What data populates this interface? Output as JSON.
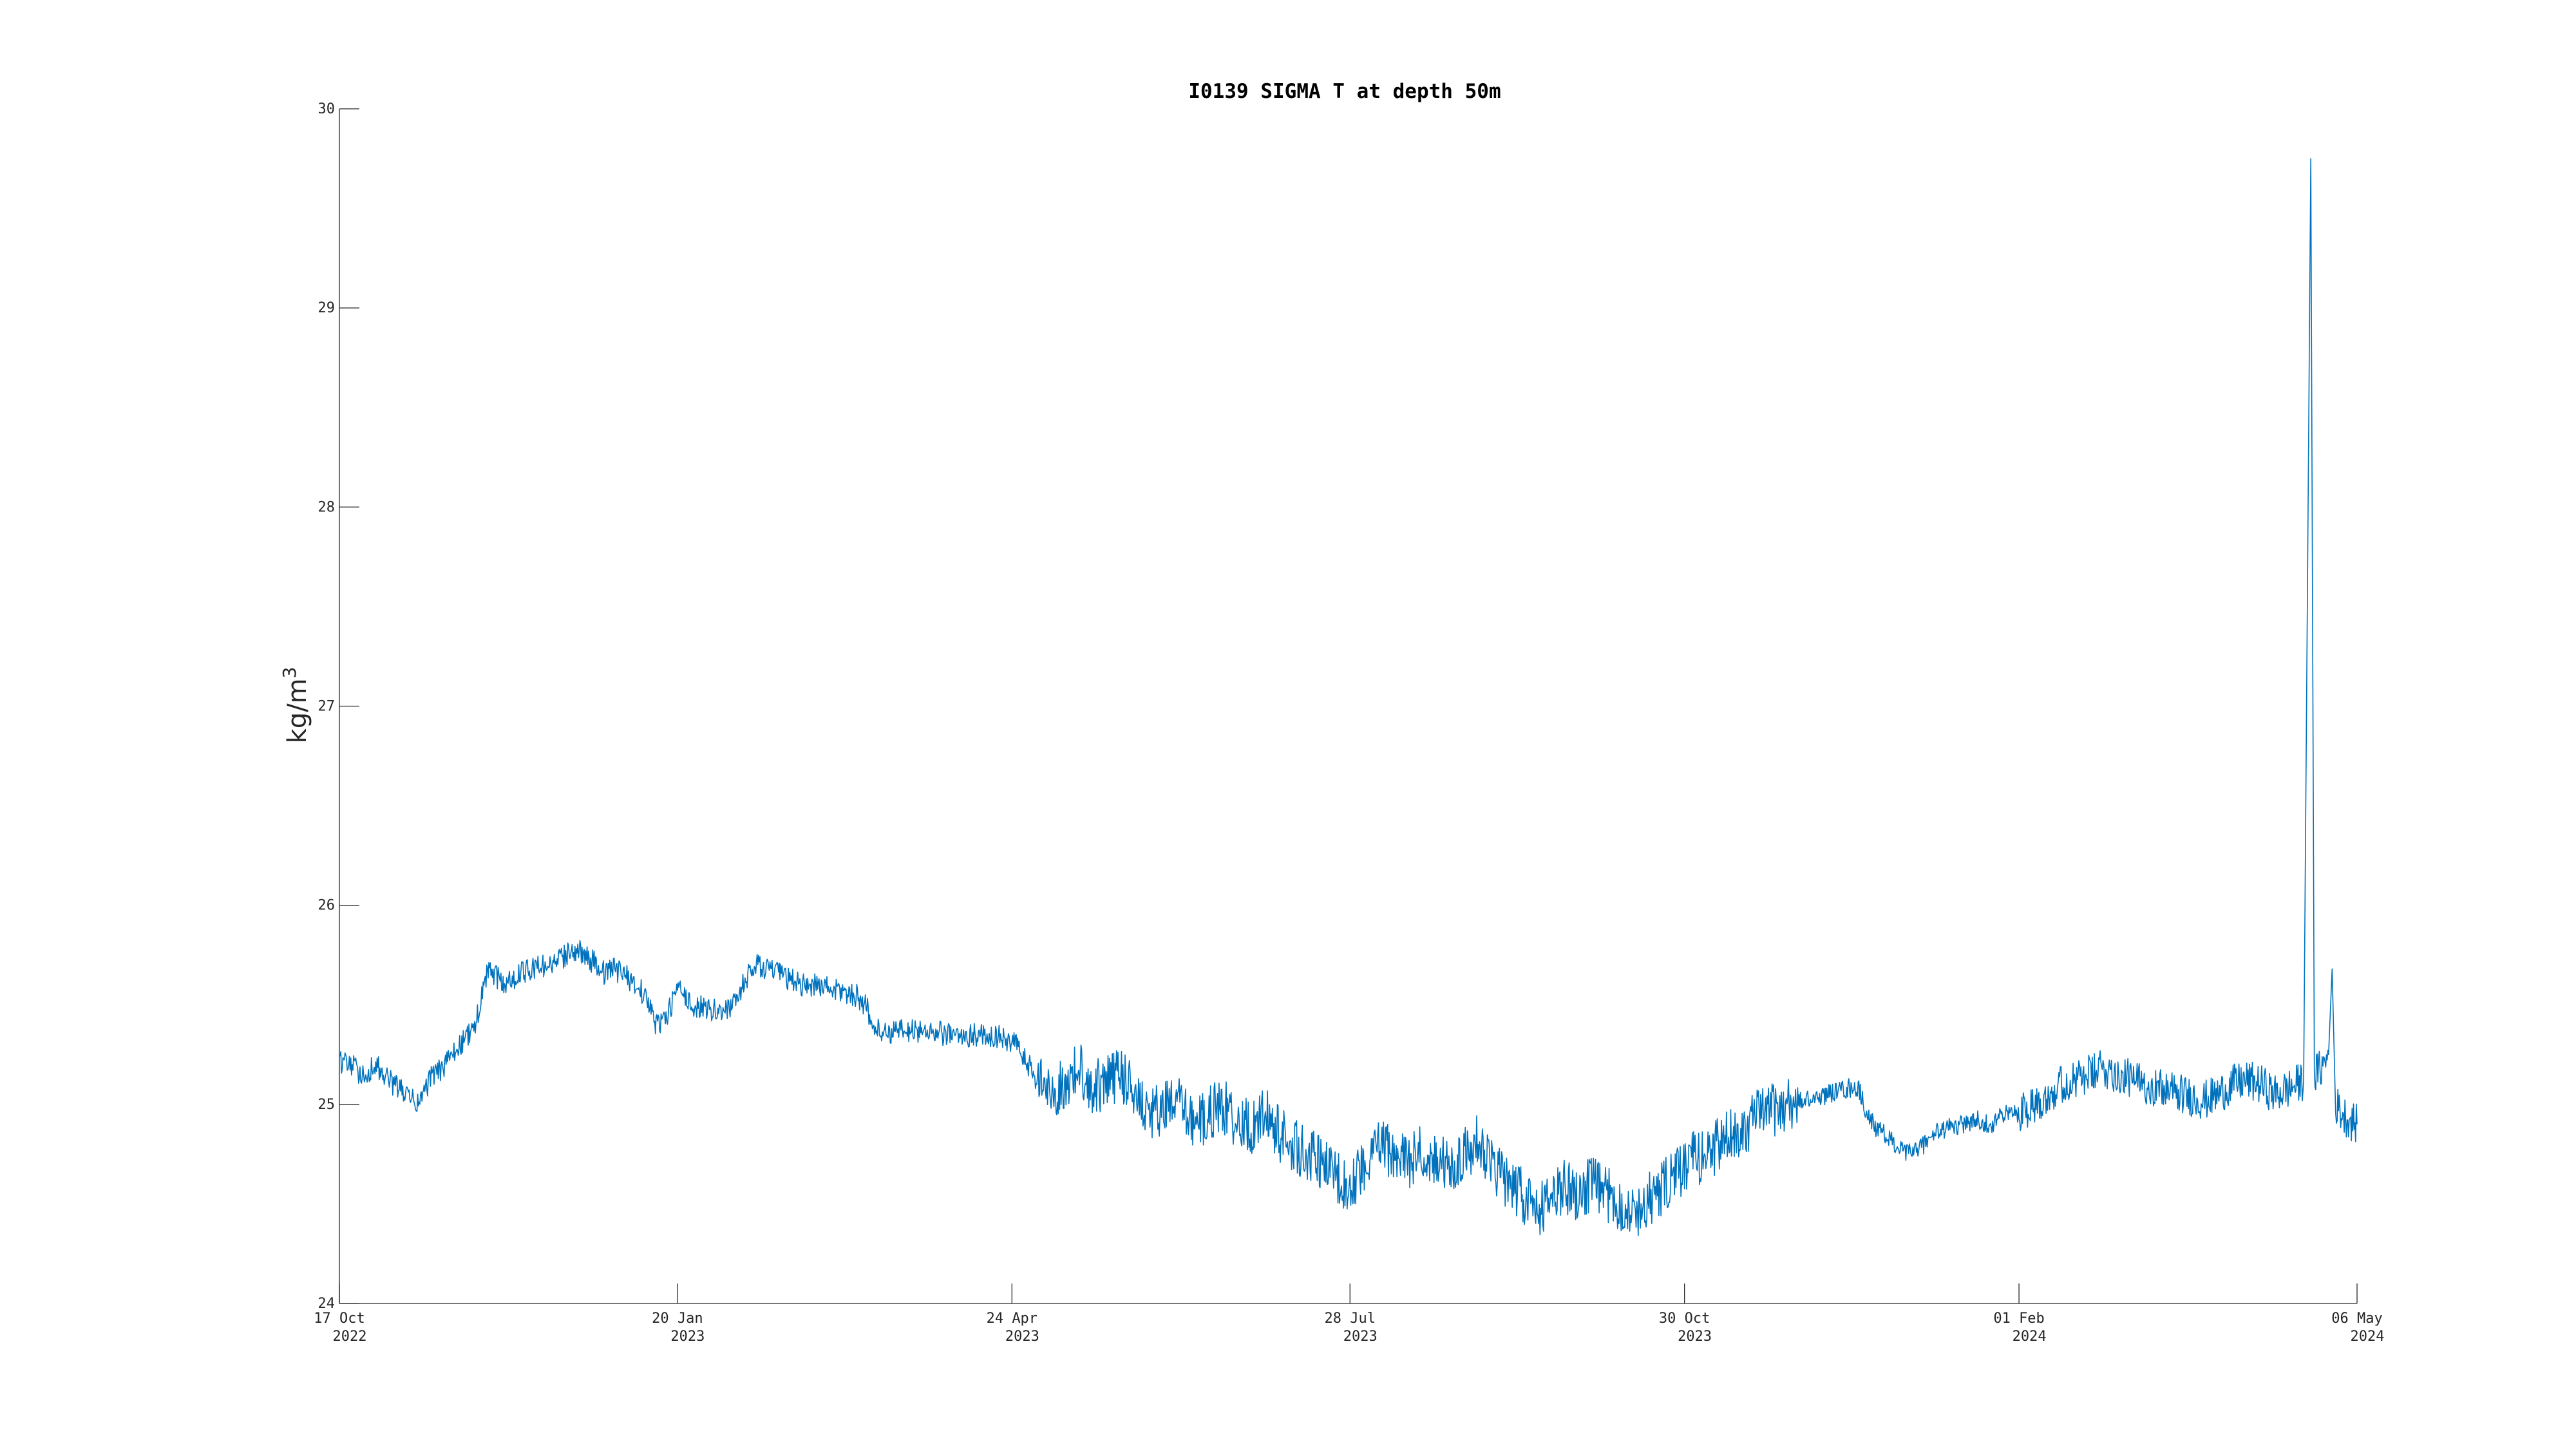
{
  "chart_data": {
    "type": "line",
    "title": "I0139 SIGMA T at depth 50m",
    "ylabel": "kg/m",
    "ylabel_sup": "3",
    "xlabel": "",
    "ylim": [
      24,
      30
    ],
    "xlim": [
      "2022-10-17",
      "2024-05-06"
    ],
    "yticks": [
      {
        "value": 24,
        "label": "24"
      },
      {
        "value": 25,
        "label": "25"
      },
      {
        "value": 26,
        "label": "26"
      },
      {
        "value": 27,
        "label": "27"
      },
      {
        "value": 28,
        "label": "28"
      },
      {
        "value": 29,
        "label": "29"
      },
      {
        "value": 30,
        "label": "30"
      }
    ],
    "xticks": [
      {
        "date": "2022-10-17",
        "label": "17 Oct",
        "year": "2022"
      },
      {
        "date": "2023-01-20",
        "label": "20 Jan",
        "year": "2023"
      },
      {
        "date": "2023-04-24",
        "label": "24 Apr",
        "year": "2023"
      },
      {
        "date": "2023-07-28",
        "label": "28 Jul",
        "year": "2023"
      },
      {
        "date": "2023-10-30",
        "label": "30 Oct",
        "year": "2023"
      },
      {
        "date": "2024-02-01",
        "label": "01 Feb",
        "year": "2024"
      },
      {
        "date": "2024-05-06",
        "label": "06 May",
        "year": "2024"
      }
    ],
    "grid": false,
    "series": [
      {
        "color": "#0072BD",
        "points": [
          [
            "2022-10-17",
            25.22
          ],
          [
            "2022-10-20",
            25.2
          ],
          [
            "2022-10-24",
            25.14
          ],
          [
            "2022-10-27",
            25.2
          ],
          [
            "2022-10-31",
            25.12
          ],
          [
            "2022-11-04",
            25.06
          ],
          [
            "2022-11-08",
            25.0
          ],
          [
            "2022-11-12",
            25.14
          ],
          [
            "2022-11-16",
            25.2
          ],
          [
            "2022-11-20",
            25.3
          ],
          [
            "2022-11-24",
            25.38
          ],
          [
            "2022-11-26",
            25.55
          ],
          [
            "2022-11-28",
            25.68
          ],
          [
            "2022-12-02",
            25.6
          ],
          [
            "2022-12-06",
            25.65
          ],
          [
            "2022-12-10",
            25.68
          ],
          [
            "2022-12-14",
            25.7
          ],
          [
            "2022-12-18",
            25.72
          ],
          [
            "2022-12-21",
            25.78
          ],
          [
            "2022-12-24",
            25.76
          ],
          [
            "2022-12-27",
            25.72
          ],
          [
            "2022-12-30",
            25.66
          ],
          [
            "2023-01-02",
            25.68
          ],
          [
            "2023-01-05",
            25.66
          ],
          [
            "2023-01-08",
            25.6
          ],
          [
            "2023-01-11",
            25.55
          ],
          [
            "2023-01-14",
            25.4
          ],
          [
            "2023-01-17",
            25.44
          ],
          [
            "2023-01-20",
            25.58
          ],
          [
            "2023-01-24",
            25.5
          ],
          [
            "2023-01-28",
            25.48
          ],
          [
            "2023-02-01",
            25.47
          ],
          [
            "2023-02-05",
            25.5
          ],
          [
            "2023-02-08",
            25.62
          ],
          [
            "2023-02-11",
            25.7
          ],
          [
            "2023-02-15",
            25.68
          ],
          [
            "2023-02-19",
            25.64
          ],
          [
            "2023-02-24",
            25.6
          ],
          [
            "2023-03-01",
            25.6
          ],
          [
            "2023-03-06",
            25.57
          ],
          [
            "2023-03-11",
            25.55
          ],
          [
            "2023-03-14",
            25.5
          ],
          [
            "2023-03-16",
            25.38
          ],
          [
            "2023-03-20",
            25.36
          ],
          [
            "2023-03-26",
            25.37
          ],
          [
            "2023-04-01",
            25.37
          ],
          [
            "2023-04-08",
            25.34
          ],
          [
            "2023-04-14",
            25.35
          ],
          [
            "2023-04-20",
            25.34
          ],
          [
            "2023-04-25",
            25.3
          ],
          [
            "2023-04-28",
            25.22
          ],
          [
            "2023-05-01",
            25.12
          ],
          [
            "2023-05-05",
            25.06
          ],
          [
            "2023-05-09",
            25.1
          ],
          [
            "2023-05-13",
            25.18
          ],
          [
            "2023-05-17",
            25.08
          ],
          [
            "2023-05-21",
            25.12
          ],
          [
            "2023-05-25",
            25.15
          ],
          [
            "2023-05-29",
            25.05
          ],
          [
            "2023-06-02",
            24.95
          ],
          [
            "2023-06-06",
            24.98
          ],
          [
            "2023-06-10",
            25.0
          ],
          [
            "2023-06-14",
            24.9
          ],
          [
            "2023-06-18",
            24.95
          ],
          [
            "2023-06-22",
            25.0
          ],
          [
            "2023-06-26",
            24.92
          ],
          [
            "2023-06-30",
            24.88
          ],
          [
            "2023-07-04",
            24.95
          ],
          [
            "2023-07-08",
            24.85
          ],
          [
            "2023-07-12",
            24.8
          ],
          [
            "2023-07-16",
            24.75
          ],
          [
            "2023-07-20",
            24.7
          ],
          [
            "2023-07-24",
            24.62
          ],
          [
            "2023-07-28",
            24.6
          ],
          [
            "2023-08-01",
            24.7
          ],
          [
            "2023-08-05",
            24.8
          ],
          [
            "2023-08-09",
            24.75
          ],
          [
            "2023-08-13",
            24.7
          ],
          [
            "2023-08-17",
            24.78
          ],
          [
            "2023-08-21",
            24.72
          ],
          [
            "2023-08-25",
            24.68
          ],
          [
            "2023-08-29",
            24.75
          ],
          [
            "2023-09-02",
            24.82
          ],
          [
            "2023-09-06",
            24.7
          ],
          [
            "2023-09-10",
            24.62
          ],
          [
            "2023-09-14",
            24.55
          ],
          [
            "2023-09-18",
            24.45
          ],
          [
            "2023-09-22",
            24.5
          ],
          [
            "2023-09-26",
            24.6
          ],
          [
            "2023-09-30",
            24.55
          ],
          [
            "2023-10-04",
            24.6
          ],
          [
            "2023-10-08",
            24.55
          ],
          [
            "2023-10-12",
            24.5
          ],
          [
            "2023-10-16",
            24.45
          ],
          [
            "2023-10-20",
            24.52
          ],
          [
            "2023-10-24",
            24.58
          ],
          [
            "2023-10-28",
            24.65
          ],
          [
            "2023-11-01",
            24.72
          ],
          [
            "2023-11-05",
            24.75
          ],
          [
            "2023-11-09",
            24.8
          ],
          [
            "2023-11-13",
            24.85
          ],
          [
            "2023-11-17",
            24.9
          ],
          [
            "2023-11-21",
            24.96
          ],
          [
            "2023-11-25",
            24.98
          ],
          [
            "2023-11-29",
            25.0
          ],
          [
            "2023-12-03",
            25.02
          ],
          [
            "2023-12-07",
            25.04
          ],
          [
            "2023-12-11",
            25.06
          ],
          [
            "2023-12-15",
            25.08
          ],
          [
            "2023-12-18",
            25.08
          ],
          [
            "2023-12-20",
            24.96
          ],
          [
            "2023-12-23",
            24.88
          ],
          [
            "2023-12-27",
            24.82
          ],
          [
            "2023-12-31",
            24.75
          ],
          [
            "2024-01-04",
            24.78
          ],
          [
            "2024-01-08",
            24.85
          ],
          [
            "2024-01-12",
            24.88
          ],
          [
            "2024-01-16",
            24.9
          ],
          [
            "2024-01-20",
            24.92
          ],
          [
            "2024-01-24",
            24.9
          ],
          [
            "2024-01-28",
            24.95
          ],
          [
            "2024-02-01",
            24.96
          ],
          [
            "2024-02-05",
            25.0
          ],
          [
            "2024-02-09",
            25.05
          ],
          [
            "2024-02-13",
            25.1
          ],
          [
            "2024-02-17",
            25.12
          ],
          [
            "2024-02-21",
            25.15
          ],
          [
            "2024-02-25",
            25.18
          ],
          [
            "2024-02-29",
            25.15
          ],
          [
            "2024-03-04",
            25.12
          ],
          [
            "2024-03-08",
            25.1
          ],
          [
            "2024-03-12",
            25.08
          ],
          [
            "2024-03-16",
            25.06
          ],
          [
            "2024-03-20",
            25.04
          ],
          [
            "2024-03-24",
            25.02
          ],
          [
            "2024-03-28",
            25.05
          ],
          [
            "2024-04-01",
            25.1
          ],
          [
            "2024-04-05",
            25.12
          ],
          [
            "2024-04-09",
            25.1
          ],
          [
            "2024-04-13",
            25.05
          ],
          [
            "2024-04-17",
            25.08
          ],
          [
            "2024-04-21",
            25.12
          ],
          [
            "2024-04-23",
            29.75
          ],
          [
            "2024-04-24",
            25.15
          ],
          [
            "2024-04-26",
            25.18
          ],
          [
            "2024-04-28",
            25.25
          ],
          [
            "2024-04-29",
            25.68
          ],
          [
            "2024-04-30",
            25.0
          ],
          [
            "2024-05-02",
            24.95
          ],
          [
            "2024-05-04",
            24.92
          ],
          [
            "2024-05-06",
            24.9
          ]
        ]
      }
    ]
  }
}
